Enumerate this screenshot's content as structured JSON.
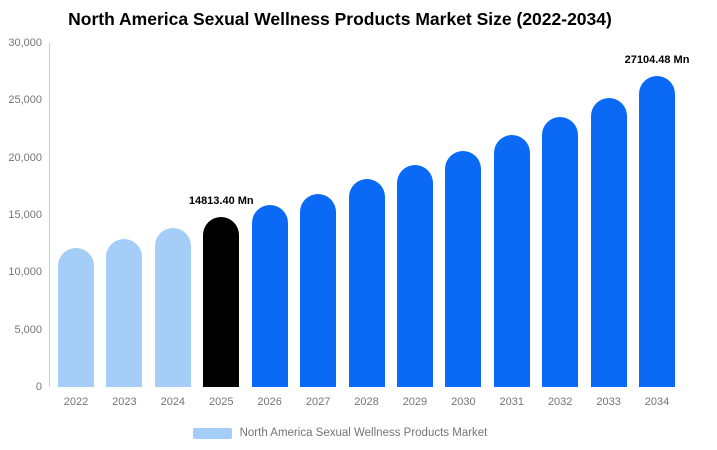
{
  "title": "North America Sexual Wellness Products Market Size (2022-2034)",
  "legend": {
    "label": "North America Sexual Wellness Products Market"
  },
  "colors": {
    "historical": "#A4CDF7",
    "base_year": "#000000",
    "forecast": "#0A6AF6",
    "axis_line": "#cccccc",
    "axis_text": "#757575",
    "value_label_text": "#000000"
  },
  "chart_data": {
    "type": "bar",
    "title": "North America Sexual Wellness Products Market Size (2022-2034)",
    "xlabel": "",
    "ylabel": "",
    "unit": "Mn",
    "grid": false,
    "legend_position": "bottom",
    "ylim": [
      0,
      30000
    ],
    "y_ticks": [
      {
        "label": "30,000",
        "value": 30000
      },
      {
        "label": "25,000",
        "value": 25000
      },
      {
        "label": "20,000",
        "value": 20000
      },
      {
        "label": "15,000",
        "value": 15000
      },
      {
        "label": "10,000",
        "value": 10000
      },
      {
        "label": "5,000",
        "value": 5000
      },
      {
        "label": "0",
        "value": 0
      }
    ],
    "categories": [
      "2022",
      "2023",
      "2024",
      "2025",
      "2026",
      "2027",
      "2028",
      "2029",
      "2030",
      "2031",
      "2032",
      "2033",
      "2034"
    ],
    "values": [
      12100,
      12950,
      13850,
      14813.4,
      15840,
      16850,
      18120,
      19370,
      20550,
      21980,
      23520,
      25210,
      27104.48
    ],
    "segments": [
      "historical",
      "historical",
      "historical",
      "base_year",
      "forecast",
      "forecast",
      "forecast",
      "forecast",
      "forecast",
      "forecast",
      "forecast",
      "forecast",
      "forecast"
    ],
    "data_labels": {
      "2025": "14813.40 Mn",
      "2034": "27104.48 Mn"
    }
  }
}
